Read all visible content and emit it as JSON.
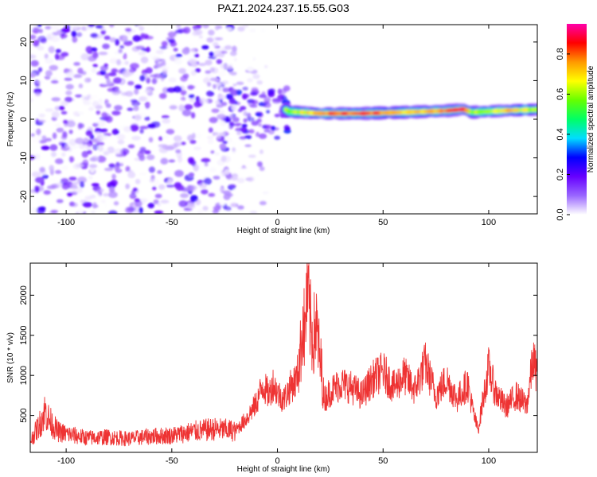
{
  "title": "PAZ1.2024.237.15.55.G03",
  "chart_data": [
    {
      "type": "heatmap",
      "xlabel": "Height of straight line (km)",
      "ylabel": "Frequency (Hz)",
      "xlim": [
        -117,
        123
      ],
      "ylim": [
        -24.5,
        24.5
      ],
      "xticks": [
        -100,
        -50,
        0,
        50,
        100
      ],
      "yticks": [
        -20,
        -10,
        0,
        10,
        20
      ],
      "colorbar": {
        "label": "Normalized spectral amplitude",
        "ticks": [
          0.0,
          0.2,
          0.4,
          0.6,
          0.8
        ],
        "range": [
          0,
          0.95
        ],
        "colormap": [
          "#ffffff",
          "#9966ff",
          "#6600ff",
          "#0000ff",
          "#00ddff",
          "#00ff66",
          "#66ff00",
          "#ffff00",
          "#ff9900",
          "#ff0000",
          "#ff00aa"
        ]
      },
      "background_noise": {
        "x_range": [
          -117,
          -20
        ],
        "y_range": [
          -24.5,
          24.5
        ],
        "amplitude_range": [
          0.0,
          0.25
        ]
      },
      "onset_cluster": {
        "x_range": [
          -22,
          5
        ],
        "y_range": [
          -5,
          8
        ],
        "amplitude_range": [
          0.1,
          0.3
        ]
      },
      "signal_track": {
        "x_start": 4,
        "x_end": 123,
        "frequency_hz": [
          {
            "x": 5,
            "y": 2.0
          },
          {
            "x": 20,
            "y": 1.5
          },
          {
            "x": 40,
            "y": 1.5
          },
          {
            "x": 60,
            "y": 1.8
          },
          {
            "x": 80,
            "y": 2.2
          },
          {
            "x": 88,
            "y": 2.6
          },
          {
            "x": 92,
            "y": 1.8
          },
          {
            "x": 110,
            "y": 2.3
          },
          {
            "x": 123,
            "y": 2.5
          }
        ],
        "peak_amplitude": [
          {
            "x": 5,
            "y": 0.55
          },
          {
            "x": 20,
            "y": 0.8
          },
          {
            "x": 40,
            "y": 0.85
          },
          {
            "x": 60,
            "y": 0.7
          },
          {
            "x": 80,
            "y": 0.8
          },
          {
            "x": 88,
            "y": 0.9
          },
          {
            "x": 92,
            "y": 0.6
          },
          {
            "x": 110,
            "y": 0.75
          },
          {
            "x": 123,
            "y": 0.6
          }
        ]
      }
    },
    {
      "type": "line",
      "xlabel": "Height of straight line (km)",
      "ylabel": "SNR (10 * v/v)",
      "xlim": [
        -117,
        123
      ],
      "ylim": [
        40,
        2400
      ],
      "xticks": [
        -100,
        -50,
        0,
        50,
        100
      ],
      "yticks": [
        500,
        1000,
        1500,
        2000
      ],
      "color": "#ee3333",
      "x": [
        -117,
        -114,
        -112,
        -110,
        -108,
        -104,
        -100,
        -90,
        -80,
        -70,
        -60,
        -50,
        -40,
        -30,
        -20,
        -15,
        -10,
        -7,
        -4,
        -2,
        0,
        3,
        6,
        9,
        11,
        12,
        13,
        14,
        15,
        16,
        17,
        18,
        19,
        20,
        21,
        22,
        25,
        30,
        35,
        40,
        45,
        50,
        55,
        60,
        65,
        70,
        75,
        80,
        85,
        90,
        93,
        95,
        97,
        100,
        103,
        108,
        113,
        118,
        121,
        123
      ],
      "y": [
        180,
        320,
        420,
        560,
        440,
        300,
        270,
        220,
        230,
        210,
        240,
        250,
        300,
        330,
        310,
        450,
        650,
        880,
        760,
        900,
        780,
        700,
        850,
        950,
        1300,
        1700,
        1500,
        2100,
        1800,
        1550,
        1450,
        1650,
        1500,
        1200,
        1050,
        700,
        800,
        900,
        850,
        750,
        950,
        1050,
        850,
        1000,
        820,
        1150,
        750,
        950,
        700,
        900,
        500,
        320,
        650,
        1100,
        800,
        600,
        750,
        620,
        1200,
        1000
      ]
    }
  ]
}
